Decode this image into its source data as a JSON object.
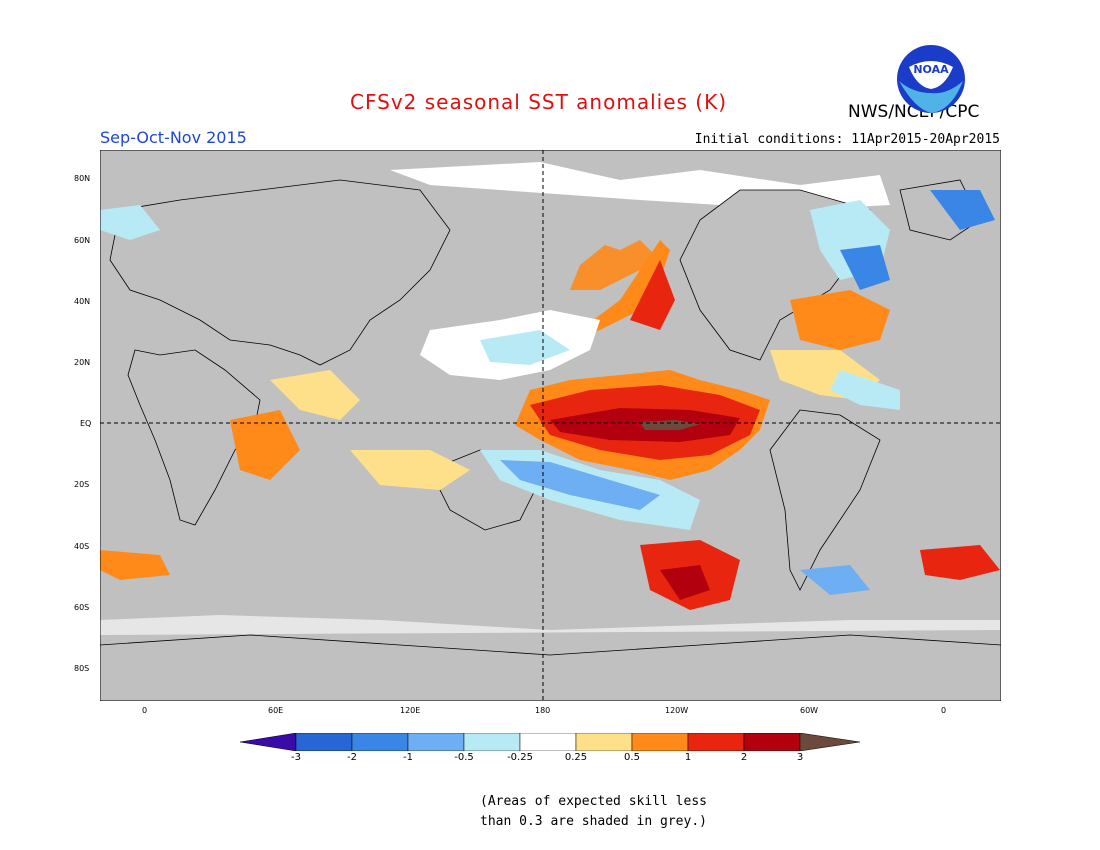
{
  "title": "CFSv2 seasonal SST anomalies (K)",
  "season": "Sep-Oct-Nov 2015",
  "initial_conditions": "Initial conditions: 11Apr2015-20Apr2015",
  "agency": "NWS/NCEP/CPC",
  "logo_text": "NOAA",
  "lat_labels": [
    "80N",
    "60N",
    "40N",
    "20N",
    "EQ",
    "20S",
    "40S",
    "60S",
    "80S"
  ],
  "lon_labels": [
    "0",
    "60E",
    "120E",
    "180",
    "120W",
    "60W",
    "0"
  ],
  "colorbar": {
    "ticks": [
      "-3",
      "-2",
      "-1",
      "-0.5",
      "-0.25",
      "0.25",
      "0.5",
      "1",
      "2",
      "3"
    ],
    "colors": [
      "#3a0ba8",
      "#2866d6",
      "#3a86e6",
      "#6eaef2",
      "#b8eaf6",
      "#ffffff",
      "#ffe08a",
      "#ff8a1a",
      "#e8250e",
      "#b3000e",
      "#6b4a3c"
    ]
  },
  "note_line1": "(Areas of expected skill less",
  "note_line2": "than 0.3 are shaded in grey.)"
}
